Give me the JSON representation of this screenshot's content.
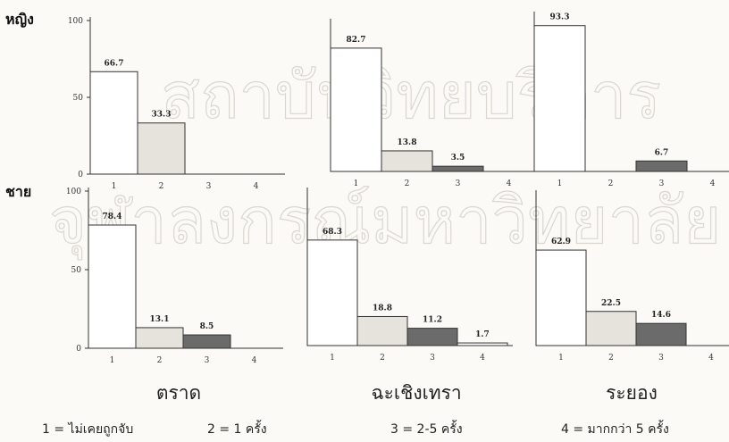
{
  "chart_data": {
    "type": "bar",
    "categories": [
      "1",
      "2",
      "3",
      "4"
    ],
    "ylim": [
      0,
      100
    ],
    "yticks": [
      0,
      50,
      100
    ],
    "grid": false,
    "colors": {
      "1": "#ffffff",
      "2": "#e6e3dc",
      "3": "#6b6b6b",
      "4": "#ffffff"
    },
    "rows": [
      {
        "label": "หญิง"
      },
      {
        "label": "ชาย"
      }
    ],
    "provinces": [
      "ตราด",
      "ฉะเชิงเทรา",
      "ระยอง"
    ],
    "panels": [
      {
        "row": "หญิง",
        "province": "ตราด",
        "values": [
          66.7,
          33.3,
          0,
          0
        ],
        "labels": [
          "66.7",
          "33.3",
          "",
          ""
        ]
      },
      {
        "row": "หญิง",
        "province": "ฉะเชิงเทรา",
        "values": [
          82.7,
          13.8,
          3.5,
          0
        ],
        "labels": [
          "82.7",
          "13.8",
          "3.5",
          ""
        ]
      },
      {
        "row": "หญิง",
        "province": "ระยอง",
        "values": [
          93.3,
          0,
          6.7,
          0
        ],
        "labels": [
          "93.3",
          "",
          "6.7",
          ""
        ]
      },
      {
        "row": "ชาย",
        "province": "ตราด",
        "values": [
          78.4,
          13.1,
          8.5,
          0
        ],
        "labels": [
          "78.4",
          "13.1",
          "8.5",
          ""
        ]
      },
      {
        "row": "ชาย",
        "province": "ฉะเชิงเทรา",
        "values": [
          68.3,
          18.8,
          11.2,
          1.7
        ],
        "labels": [
          "68.3",
          "18.8",
          "11.2",
          "1.7"
        ]
      },
      {
        "row": "ชาย",
        "province": "ระยอง",
        "values": [
          62.9,
          22.5,
          14.6,
          0
        ],
        "labels": [
          "62.9",
          "22.5",
          "14.6",
          ""
        ]
      }
    ]
  },
  "legend": [
    "1 = ไม่เคยถูกจับ",
    "2 = 1 ครั้ง",
    "3 = 2-5 ครั้ง",
    "4 = มากกว่า 5 ครั้ง"
  ],
  "watermark": [
    "สถาบันวิทยบริการ",
    "จุฬาลงกรณ์มหาวิทยาลัย"
  ]
}
